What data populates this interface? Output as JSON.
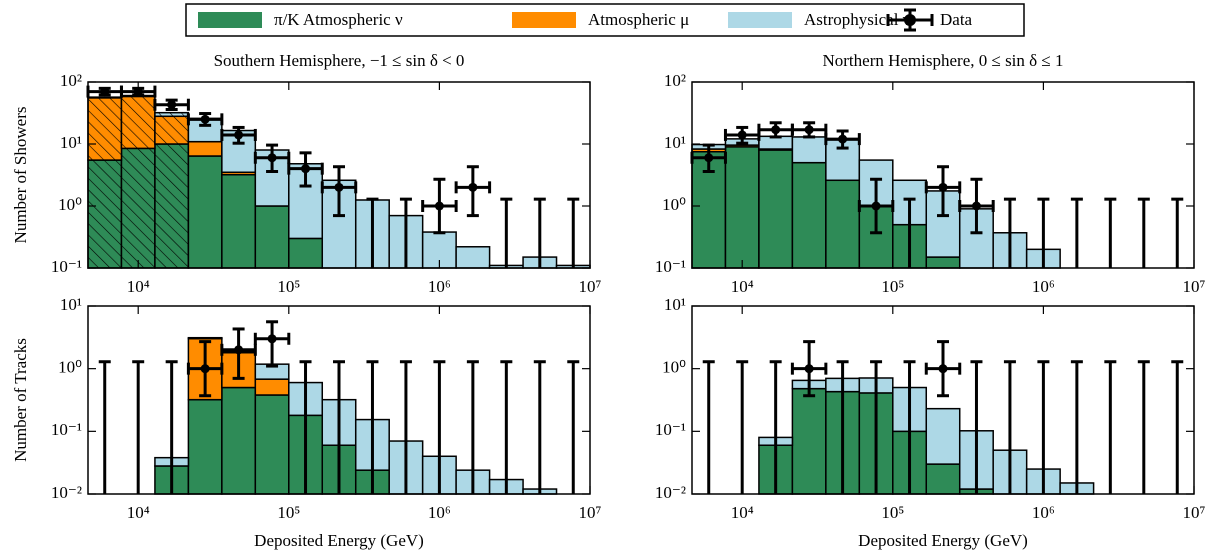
{
  "chart_data": [
    {
      "type": "stacked_histogram",
      "title": "Southern Hemisphere, −1 ≤ sin δ < 0",
      "ylabel": "Number of Showers",
      "log_x": true,
      "log_y": true,
      "legend": "top-outside",
      "hatched_bins": [
        0,
        1,
        2
      ],
      "bins": [
        4642,
        7743,
        12915,
        21544,
        35938,
        59948,
        100000,
        166810,
        278256,
        464159,
        774264,
        1291550,
        2154435,
        3593814,
        5994843,
        10000000
      ],
      "xlim": [
        4642,
        10000000
      ],
      "ylim": [
        0.1,
        100
      ],
      "xticks": [
        {
          "value": 10000,
          "label": "10⁴"
        },
        {
          "value": 100000,
          "label": "10⁵"
        },
        {
          "value": 1000000,
          "label": "10⁶"
        },
        {
          "value": 10000000,
          "label": "10⁷"
        }
      ],
      "yticks": [
        {
          "value": 0.1,
          "label": "10⁻¹"
        },
        {
          "value": 1,
          "label": "10⁰"
        },
        {
          "value": 10,
          "label": "10¹"
        },
        {
          "value": 100,
          "label": "10²"
        }
      ],
      "series": [
        {
          "name": "π/K Atmospheric ν",
          "color": "#2e8b57",
          "values": [
            5.5,
            8.5,
            10,
            6.4,
            3.2,
            1.0,
            0.3,
            null,
            null,
            null,
            null,
            null,
            null,
            null,
            null
          ]
        },
        {
          "name": "Atmospheric μ",
          "color": "#ff8c00",
          "values": [
            50,
            50,
            18,
            4.5,
            0.3,
            null,
            null,
            null,
            null,
            null,
            null,
            null,
            null,
            null,
            null
          ]
        },
        {
          "name": "Astrophysical ν",
          "color": "#add8e6",
          "values": [
            1.5,
            2,
            4,
            15,
            13,
            7,
            4.5,
            2.6,
            1.25,
            0.7,
            0.38,
            0.22,
            0.11,
            0.15,
            0.11
          ]
        }
      ],
      "data": {
        "name": "Data",
        "color": "#000000",
        "values": [
          70,
          70,
          43,
          25,
          14,
          6,
          4,
          2,
          null,
          null,
          1,
          2,
          null,
          null,
          null
        ],
        "err_low": [
          8,
          8,
          7,
          5,
          3.7,
          2.4,
          1.9,
          1.3,
          null,
          null,
          0.63,
          1.3,
          null,
          null,
          null
        ],
        "err_high": [
          9,
          9,
          8,
          6,
          4.5,
          3.6,
          3.2,
          2.3,
          null,
          null,
          1.7,
          2.3,
          null,
          null,
          null
        ],
        "upper_limits": [
          null,
          null,
          null,
          null,
          null,
          null,
          null,
          null,
          1.29,
          1.29,
          null,
          null,
          1.29,
          1.29,
          1.29
        ]
      }
    },
    {
      "type": "stacked_histogram",
      "title": "Northern Hemisphere, 0 ≤ sin δ ≤ 1",
      "log_x": true,
      "log_y": true,
      "bins": [
        4642,
        7743,
        12915,
        21544,
        35938,
        59948,
        100000,
        166810,
        278256,
        464159,
        774264,
        1291550,
        2154435,
        3593814,
        5994843,
        10000000
      ],
      "xlim": [
        4642,
        10000000
      ],
      "ylim": [
        0.1,
        100
      ],
      "xticks": [
        {
          "value": 10000,
          "label": "10⁴"
        },
        {
          "value": 100000,
          "label": "10⁵"
        },
        {
          "value": 1000000,
          "label": "10⁶"
        },
        {
          "value": 10000000,
          "label": "10⁷"
        }
      ],
      "yticks": [
        {
          "value": 0.1,
          "label": "10⁻¹"
        },
        {
          "value": 1,
          "label": "10⁰"
        },
        {
          "value": 10,
          "label": "10¹"
        },
        {
          "value": 100,
          "label": "10²"
        }
      ],
      "series": [
        {
          "color": "#2e8b57",
          "values": [
            7.5,
            9,
            8,
            5,
            2.6,
            1.0,
            0.5,
            0.15,
            null,
            null,
            null,
            null,
            null,
            null,
            null
          ]
        },
        {
          "color": "#ff8c00",
          "values": [
            0.8,
            0.6,
            0.3,
            null,
            null,
            null,
            null,
            null,
            null,
            null,
            null,
            null,
            null,
            null,
            null
          ]
        },
        {
          "color": "#add8e6",
          "values": [
            1.5,
            2.5,
            5,
            8,
            9,
            4.5,
            2.1,
            1.6,
            0.9,
            0.37,
            0.2,
            null,
            null,
            null,
            null
          ]
        }
      ],
      "data": {
        "color": "#000000",
        "values": [
          6,
          14,
          17,
          17,
          12,
          1,
          null,
          2,
          1,
          null,
          null,
          null,
          null,
          null,
          null
        ],
        "err_low": [
          2.4,
          3.7,
          4,
          4,
          3.4,
          0.63,
          null,
          1.3,
          0.63,
          null,
          null,
          null,
          null,
          null,
          null
        ],
        "err_high": [
          3.6,
          4.5,
          5,
          5,
          4.2,
          1.7,
          null,
          2.3,
          1.7,
          null,
          null,
          null,
          null,
          null,
          null
        ],
        "upper_limits": [
          null,
          null,
          null,
          null,
          null,
          null,
          1.29,
          null,
          null,
          1.29,
          1.29,
          1.29,
          1.29,
          1.29,
          1.29
        ]
      }
    },
    {
      "type": "stacked_histogram",
      "ylabel": "Number of Tracks",
      "xlabel": "Deposited Energy (GeV)",
      "log_x": true,
      "log_y": true,
      "bins": [
        4642,
        7743,
        12915,
        21544,
        35938,
        59948,
        100000,
        166810,
        278256,
        464159,
        774264,
        1291550,
        2154435,
        3593814,
        5994843,
        10000000
      ],
      "xlim": [
        4642,
        10000000
      ],
      "ylim": [
        0.01,
        10
      ],
      "xticks": [
        {
          "value": 10000,
          "label": "10⁴"
        },
        {
          "value": 100000,
          "label": "10⁵"
        },
        {
          "value": 1000000,
          "label": "10⁶"
        },
        {
          "value": 10000000,
          "label": "10⁷"
        }
      ],
      "yticks": [
        {
          "value": 0.01,
          "label": "10⁻²"
        },
        {
          "value": 0.1,
          "label": "10⁻¹"
        },
        {
          "value": 1,
          "label": "10⁰"
        },
        {
          "value": 10,
          "label": "10¹"
        }
      ],
      "series": [
        {
          "color": "#2e8b57",
          "values": [
            null,
            null,
            0.028,
            0.32,
            0.5,
            0.38,
            0.18,
            0.06,
            0.024,
            null,
            null,
            null,
            null,
            null,
            null
          ]
        },
        {
          "color": "#ff8c00",
          "values": [
            null,
            null,
            null,
            2.7,
            1.3,
            0.3,
            null,
            null,
            null,
            null,
            null,
            null,
            null,
            null,
            null
          ]
        },
        {
          "color": "#add8e6",
          "values": [
            null,
            null,
            0.01,
            0.1,
            0.1,
            0.5,
            0.42,
            0.26,
            0.13,
            0.07,
            0.04,
            0.024,
            0.017,
            0.012,
            null
          ]
        }
      ],
      "data": {
        "color": "#000000",
        "values": [
          null,
          null,
          null,
          1,
          2,
          3,
          null,
          null,
          null,
          null,
          null,
          null,
          null,
          null,
          null
        ],
        "err_low": [
          null,
          null,
          null,
          0.63,
          1.3,
          1.9,
          null,
          null,
          null,
          null,
          null,
          null,
          null,
          null,
          null
        ],
        "err_high": [
          null,
          null,
          null,
          1.7,
          2.3,
          2.6,
          null,
          null,
          null,
          null,
          null,
          null,
          null,
          null,
          null
        ],
        "upper_limits": [
          1.29,
          1.29,
          1.29,
          null,
          null,
          null,
          1.29,
          1.29,
          1.29,
          1.29,
          1.29,
          1.29,
          1.29,
          1.29,
          1.29
        ]
      }
    },
    {
      "type": "stacked_histogram",
      "xlabel": "Deposited Energy (GeV)",
      "log_x": true,
      "log_y": true,
      "bins": [
        4642,
        7743,
        12915,
        21544,
        35938,
        59948,
        100000,
        166810,
        278256,
        464159,
        774264,
        1291550,
        2154435,
        3593814,
        5994843,
        10000000
      ],
      "xlim": [
        4642,
        10000000
      ],
      "ylim": [
        0.01,
        10
      ],
      "xticks": [
        {
          "value": 10000,
          "label": "10⁴"
        },
        {
          "value": 100000,
          "label": "10⁵"
        },
        {
          "value": 1000000,
          "label": "10⁶"
        },
        {
          "value": 10000000,
          "label": "10⁷"
        }
      ],
      "yticks": [
        {
          "value": 0.01,
          "label": "10⁻²"
        },
        {
          "value": 0.1,
          "label": "10⁻¹"
        },
        {
          "value": 1,
          "label": "10⁰"
        },
        {
          "value": 10,
          "label": "10¹"
        }
      ],
      "series": [
        {
          "color": "#2e8b57",
          "values": [
            null,
            null,
            0.06,
            0.48,
            0.43,
            0.41,
            0.1,
            0.03,
            0.012,
            null,
            null,
            null,
            null,
            null,
            null
          ]
        },
        {
          "color": "#ff8c00",
          "values": [
            null,
            null,
            null,
            null,
            null,
            null,
            null,
            null,
            null,
            null,
            null,
            null,
            null,
            null,
            null
          ]
        },
        {
          "color": "#add8e6",
          "values": [
            null,
            null,
            0.02,
            0.17,
            0.27,
            0.3,
            0.4,
            0.2,
            0.09,
            0.05,
            0.025,
            0.015,
            null,
            null,
            null
          ]
        }
      ],
      "data": {
        "color": "#000000",
        "values": [
          null,
          null,
          null,
          1,
          null,
          null,
          null,
          1,
          null,
          null,
          null,
          null,
          null,
          null,
          null
        ],
        "err_low": [
          null,
          null,
          null,
          0.63,
          null,
          null,
          null,
          0.63,
          null,
          null,
          null,
          null,
          null,
          null,
          null
        ],
        "err_high": [
          null,
          null,
          null,
          1.7,
          null,
          null,
          null,
          1.7,
          null,
          null,
          null,
          null,
          null,
          null,
          null
        ],
        "upper_limits": [
          1.29,
          1.29,
          1.29,
          null,
          1.29,
          1.29,
          1.29,
          null,
          1.29,
          1.29,
          1.29,
          1.29,
          1.29,
          1.29,
          1.29
        ]
      }
    }
  ]
}
